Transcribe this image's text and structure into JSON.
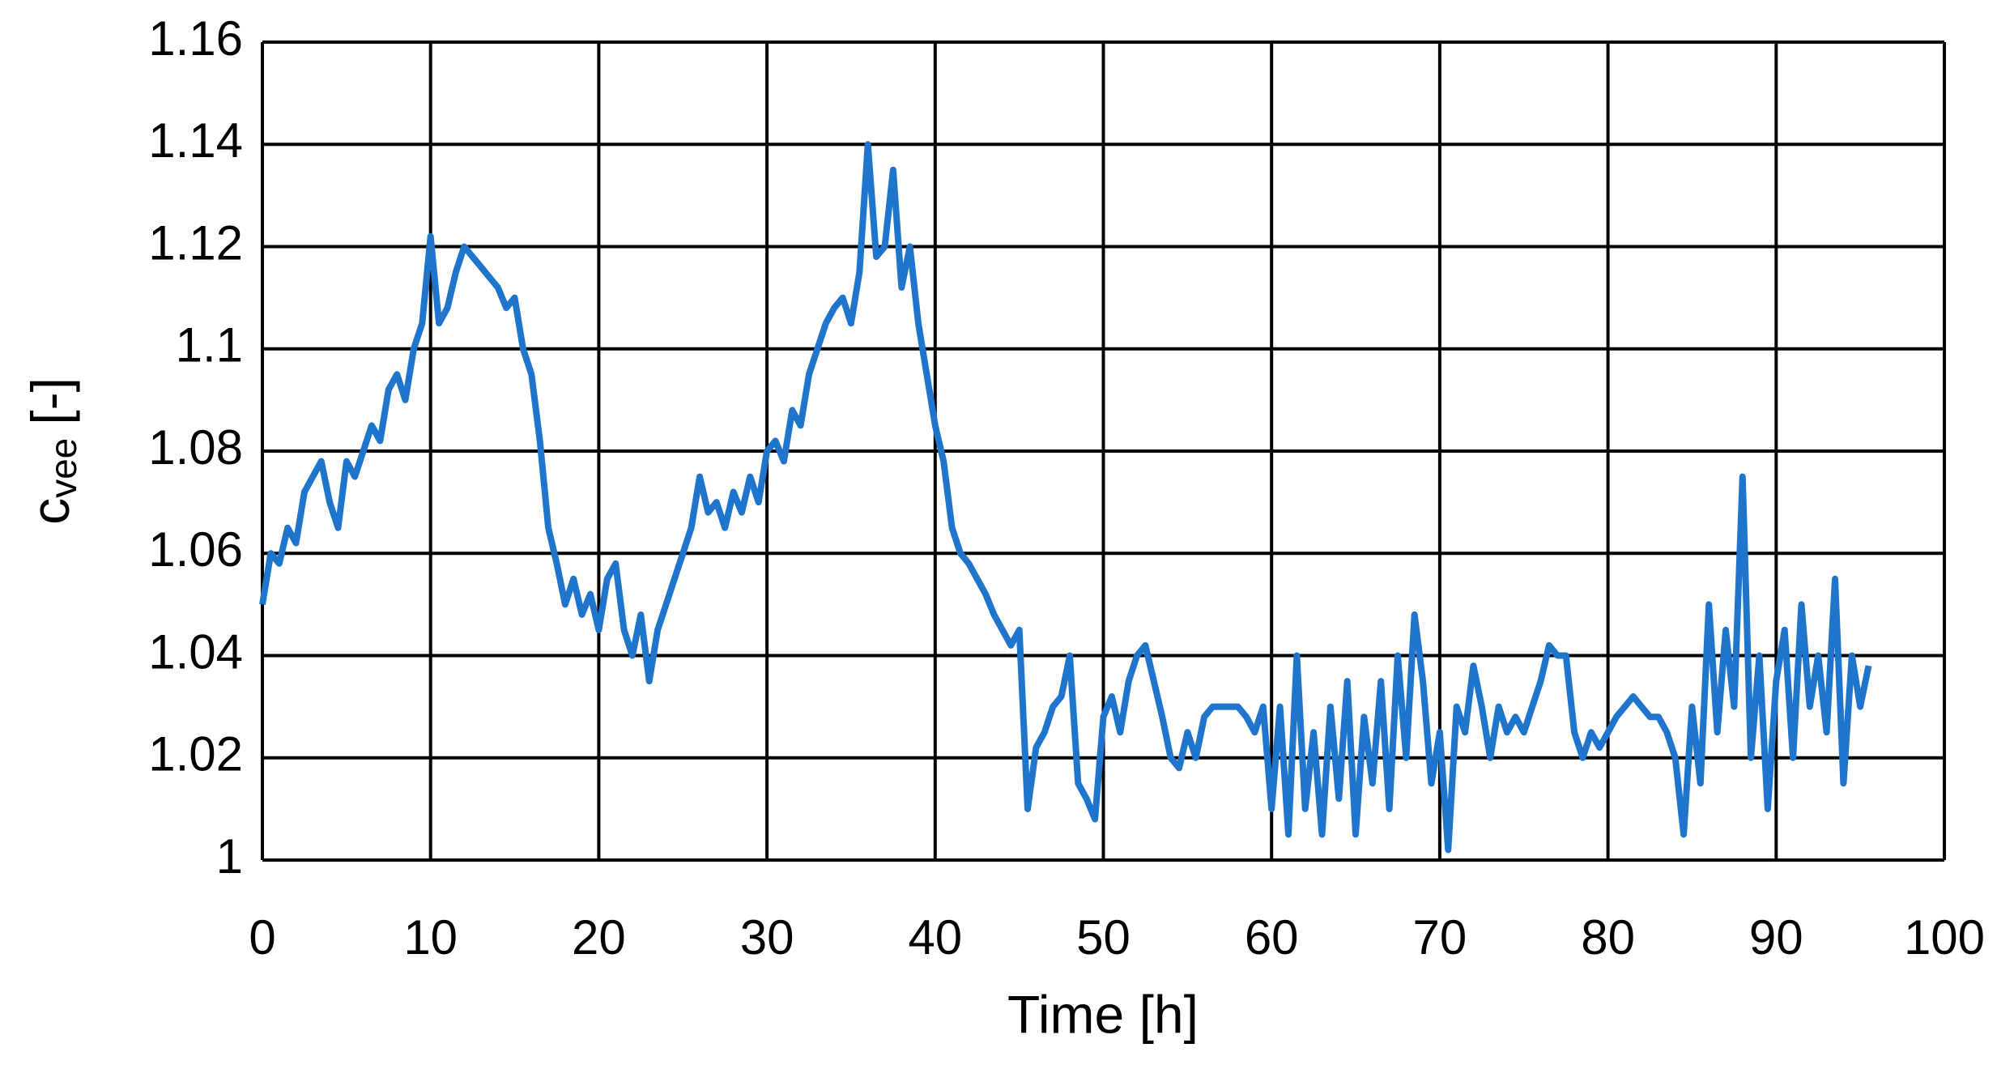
{
  "chart_data": {
    "type": "line",
    "xlabel": "Time [h]",
    "ylabel": [
      "c",
      "vee",
      "[-]"
    ],
    "xlim": [
      0,
      100
    ],
    "ylim": [
      1,
      1.16
    ],
    "xticks": [
      0,
      10,
      20,
      30,
      40,
      50,
      60,
      70,
      80,
      90,
      100
    ],
    "yticks": [
      1,
      1.02,
      1.04,
      1.06,
      1.08,
      1.1,
      1.12,
      1.14,
      1.16
    ],
    "grid": true,
    "series": [
      {
        "color": "#1f75cc",
        "x": [
          0,
          0.5,
          1,
          1.5,
          2,
          2.5,
          3,
          3.5,
          4,
          4.5,
          5,
          5.5,
          6,
          6.5,
          7,
          7.5,
          8,
          8.5,
          9,
          9.5,
          10,
          10.5,
          11,
          11.5,
          12,
          12.5,
          13,
          13.5,
          14,
          14.5,
          15,
          15.5,
          16,
          16.5,
          17,
          17.5,
          18,
          18.5,
          19,
          19.5,
          20,
          20.5,
          21,
          21.5,
          22,
          22.5,
          23,
          23.5,
          24,
          24.5,
          25,
          25.5,
          26,
          26.5,
          27,
          27.5,
          28,
          28.5,
          29,
          29.5,
          30,
          30.5,
          31,
          31.5,
          32,
          32.5,
          33,
          33.5,
          34,
          34.5,
          35,
          35.5,
          36,
          36.5,
          37,
          37.5,
          38,
          38.5,
          39,
          39.5,
          40,
          40.5,
          41,
          41.5,
          42,
          42.5,
          43,
          43.5,
          44,
          44.5,
          45,
          45.5,
          46,
          46.5,
          47,
          47.5,
          48,
          48.5,
          49,
          49.5,
          50,
          50.5,
          51,
          51.5,
          52,
          52.5,
          53,
          53.5,
          54,
          54.5,
          55,
          55.5,
          56,
          56.5,
          57,
          57.5,
          58,
          58.5,
          59,
          59.5,
          60,
          60.5,
          61,
          61.5,
          62,
          62.5,
          63,
          63.5,
          64,
          64.5,
          65,
          65.5,
          66,
          66.5,
          67,
          67.5,
          68,
          68.5,
          69,
          69.5,
          70,
          70.5,
          71,
          71.5,
          72,
          72.5,
          73,
          73.5,
          74,
          74.5,
          75,
          75.5,
          76,
          76.5,
          77,
          77.5,
          78,
          78.5,
          79,
          79.5,
          80,
          80.5,
          81,
          81.5,
          82,
          82.5,
          83,
          83.5,
          84,
          84.5,
          85,
          85.5,
          86,
          86.5,
          87,
          87.5,
          88,
          88.5,
          89,
          89.5,
          90,
          90.5,
          91,
          91.5,
          92,
          92.5,
          93,
          93.5,
          94,
          94.5,
          95,
          95.5
        ],
        "values": [
          1.05,
          1.06,
          1.058,
          1.065,
          1.062,
          1.072,
          1.075,
          1.078,
          1.07,
          1.065,
          1.078,
          1.075,
          1.08,
          1.085,
          1.082,
          1.092,
          1.095,
          1.09,
          1.1,
          1.105,
          1.122,
          1.105,
          1.108,
          1.115,
          1.12,
          1.118,
          1.116,
          1.114,
          1.112,
          1.108,
          1.11,
          1.1,
          1.095,
          1.082,
          1.065,
          1.058,
          1.05,
          1.055,
          1.048,
          1.052,
          1.045,
          1.055,
          1.058,
          1.045,
          1.04,
          1.048,
          1.035,
          1.045,
          1.05,
          1.055,
          1.06,
          1.065,
          1.075,
          1.068,
          1.07,
          1.065,
          1.072,
          1.068,
          1.075,
          1.07,
          1.08,
          1.082,
          1.078,
          1.088,
          1.085,
          1.095,
          1.1,
          1.105,
          1.108,
          1.11,
          1.105,
          1.115,
          1.14,
          1.118,
          1.12,
          1.135,
          1.112,
          1.12,
          1.105,
          1.095,
          1.085,
          1.078,
          1.065,
          1.06,
          1.058,
          1.055,
          1.052,
          1.048,
          1.045,
          1.042,
          1.045,
          1.01,
          1.022,
          1.025,
          1.03,
          1.032,
          1.04,
          1.015,
          1.012,
          1.008,
          1.028,
          1.032,
          1.025,
          1.035,
          1.04,
          1.042,
          1.035,
          1.028,
          1.02,
          1.018,
          1.025,
          1.02,
          1.028,
          1.03,
          1.03,
          1.03,
          1.03,
          1.028,
          1.025,
          1.03,
          1.01,
          1.03,
          1.005,
          1.04,
          1.01,
          1.025,
          1.005,
          1.03,
          1.012,
          1.035,
          1.005,
          1.028,
          1.015,
          1.035,
          1.01,
          1.04,
          1.02,
          1.048,
          1.035,
          1.015,
          1.025,
          1.002,
          1.03,
          1.025,
          1.038,
          1.03,
          1.02,
          1.03,
          1.025,
          1.028,
          1.025,
          1.03,
          1.035,
          1.042,
          1.04,
          1.04,
          1.025,
          1.02,
          1.025,
          1.022,
          1.025,
          1.028,
          1.03,
          1.032,
          1.03,
          1.028,
          1.028,
          1.025,
          1.02,
          1.005,
          1.03,
          1.015,
          1.05,
          1.025,
          1.045,
          1.03,
          1.075,
          1.02,
          1.04,
          1.01,
          1.035,
          1.045,
          1.02,
          1.05,
          1.03,
          1.04,
          1.025,
          1.055,
          1.015,
          1.04,
          1.03,
          1.038
        ]
      }
    ]
  }
}
